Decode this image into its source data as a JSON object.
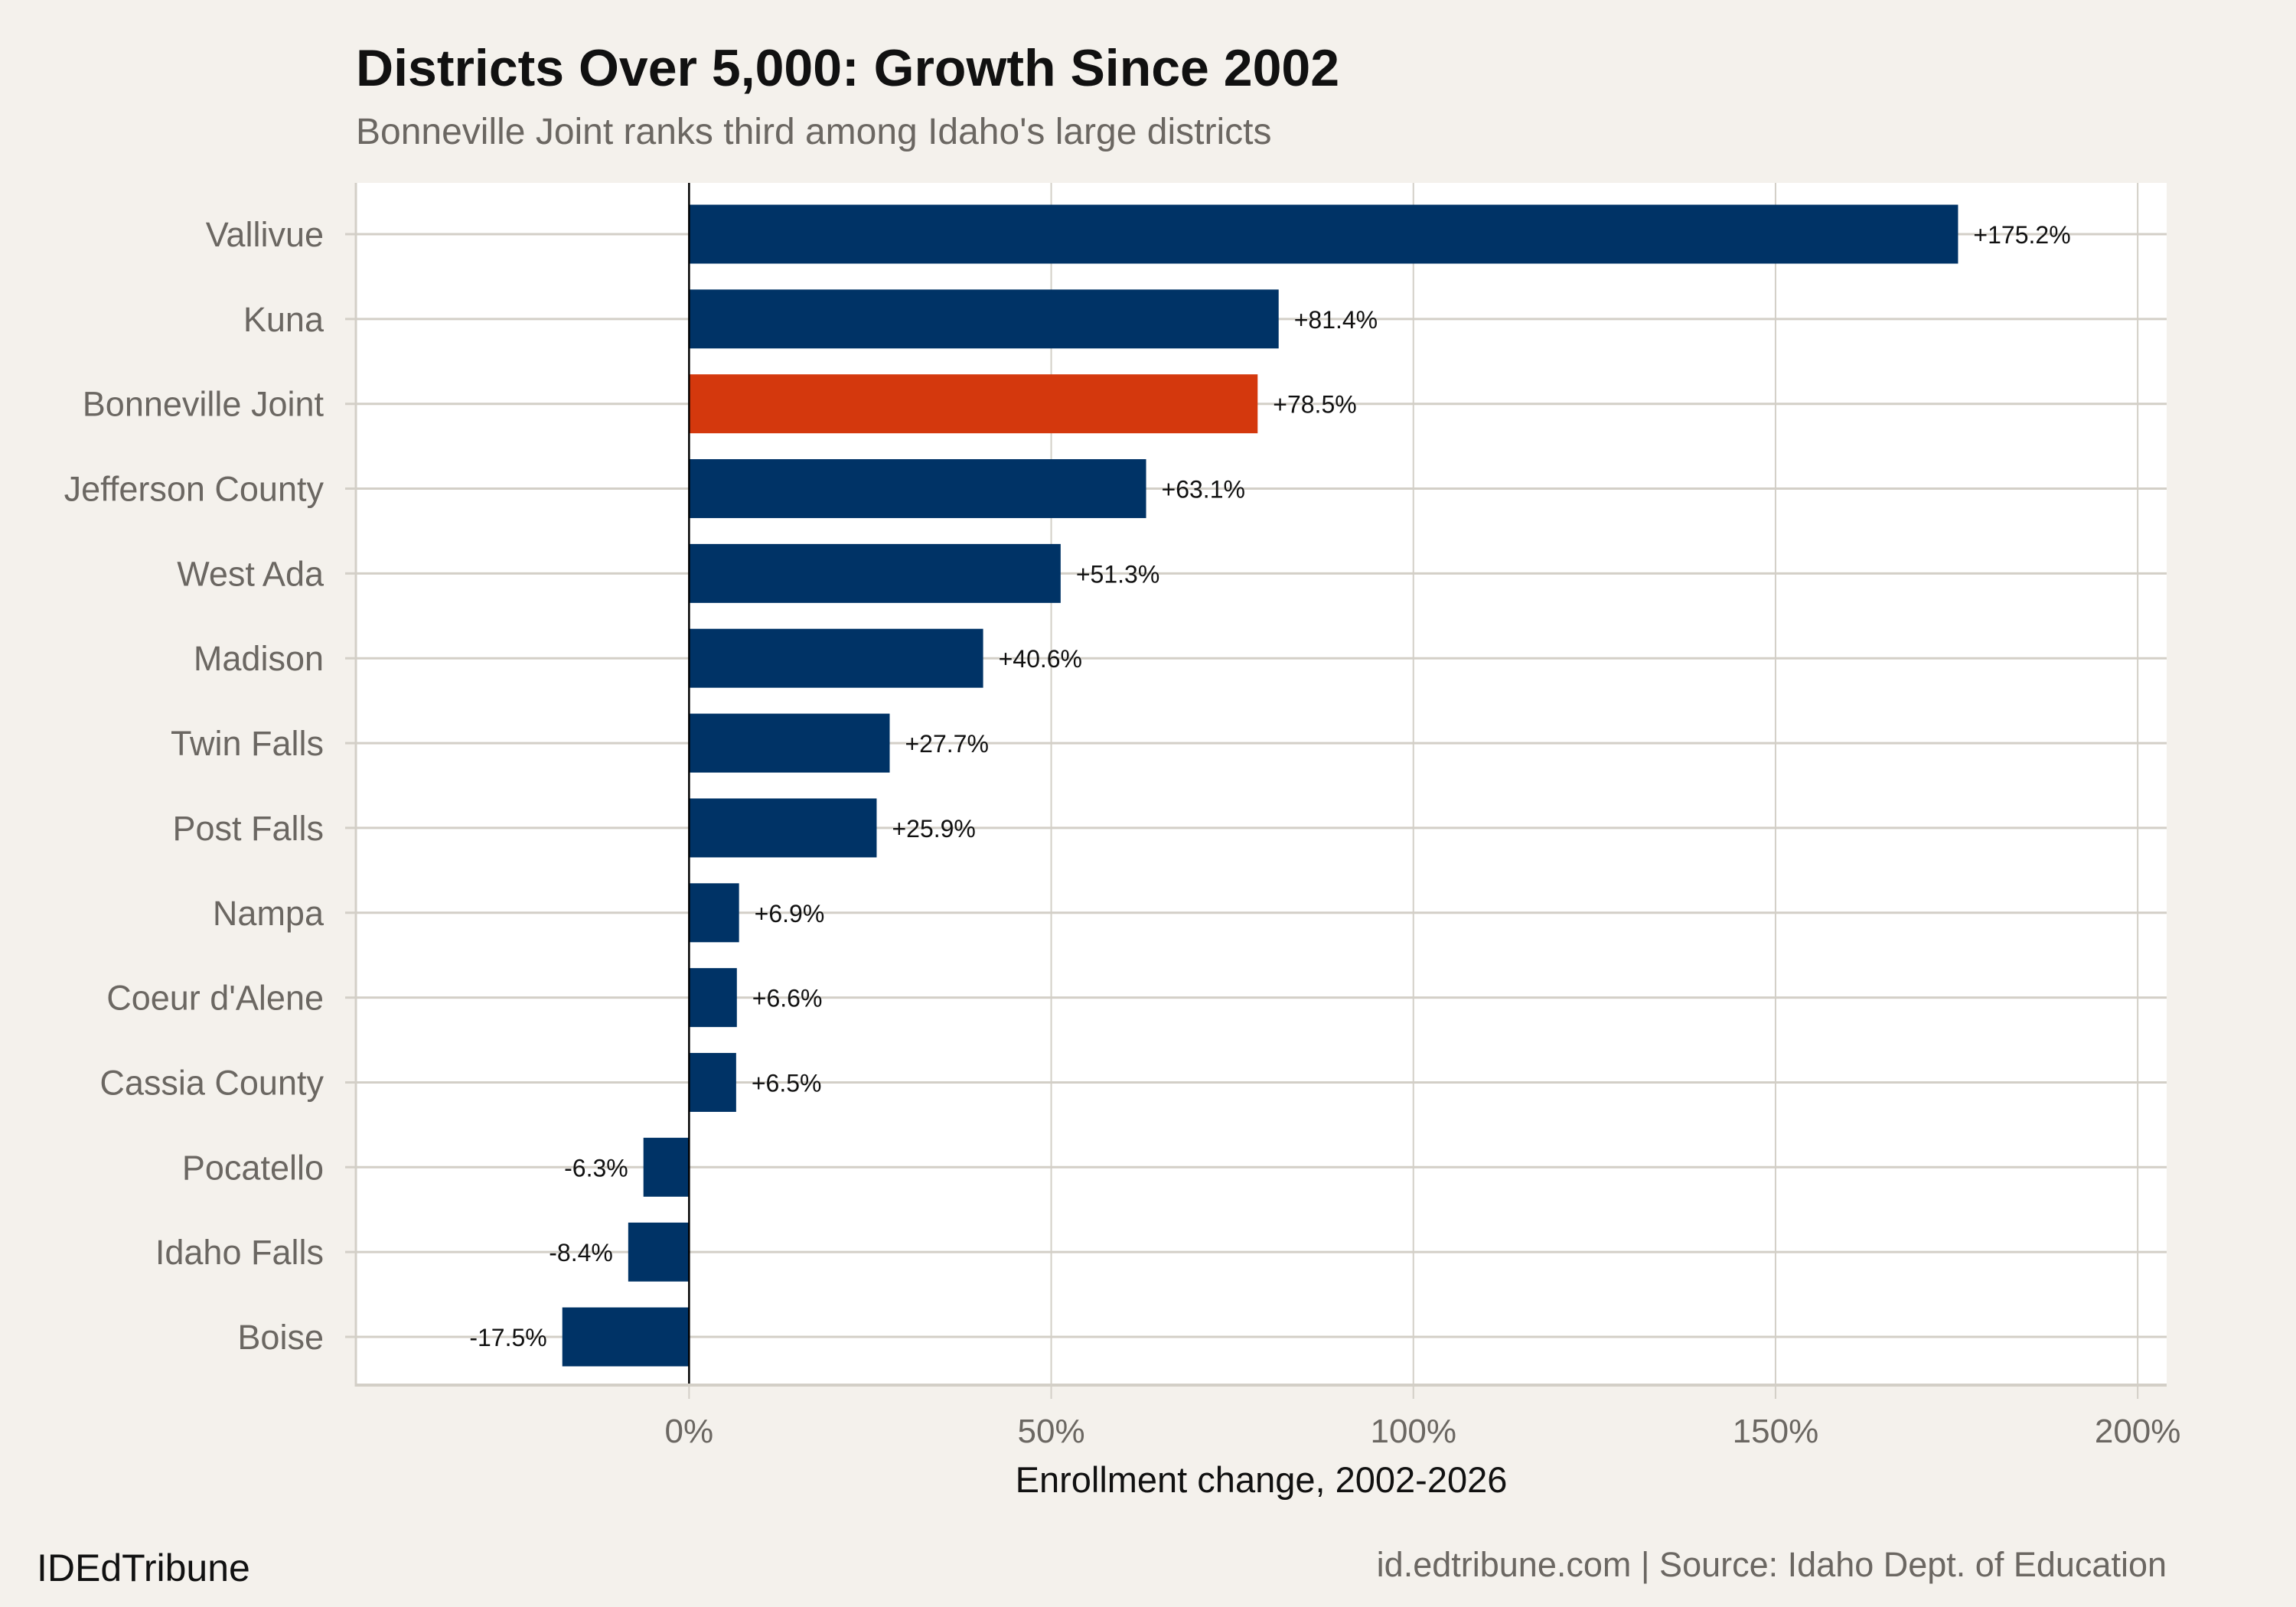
{
  "header": {
    "title": "Districts Over 5,000: Growth Since 2002",
    "subtitle": "Bonneville Joint ranks third among Idaho's large districts"
  },
  "footer": {
    "brand": "IDEdTribune",
    "source": "id.edtribune.com | Source: Idaho Dept. of Education"
  },
  "chart_data": {
    "type": "bar",
    "orientation": "horizontal",
    "categories": [
      "Vallivue",
      "Kuna",
      "Bonneville Joint",
      "Jefferson County",
      "West Ada",
      "Madison",
      "Twin Falls",
      "Post Falls",
      "Nampa",
      "Coeur d'Alene",
      "Cassia County",
      "Pocatello",
      "Idaho Falls",
      "Boise"
    ],
    "values": [
      175.2,
      81.4,
      78.5,
      63.1,
      51.3,
      40.6,
      27.7,
      25.9,
      6.9,
      6.6,
      6.5,
      -6.3,
      -8.4,
      -17.5
    ],
    "data_labels": [
      "+175.2%",
      "+81.4%",
      "+78.5%",
      "+63.1%",
      "+51.3%",
      "+40.6%",
      "+27.7%",
      "+25.9%",
      "+6.9%",
      "+6.6%",
      "+6.5%",
      "-6.3%",
      "-8.4%",
      "-17.5%"
    ],
    "highlight": "Bonneville Joint",
    "xlabel": "Enrollment change, 2002-2026",
    "ylabel": "",
    "xlim": [
      -46,
      204
    ],
    "xticks": [
      0,
      50,
      100,
      150,
      200
    ],
    "xtick_labels": [
      "0%",
      "50%",
      "100%",
      "150%",
      "200%"
    ],
    "grid": true,
    "colors": {
      "bar": "#003366",
      "highlight": "#d4380d",
      "background": "#f4f1ec",
      "panel": "#ffffff",
      "grid": "#d3cfc7"
    }
  }
}
